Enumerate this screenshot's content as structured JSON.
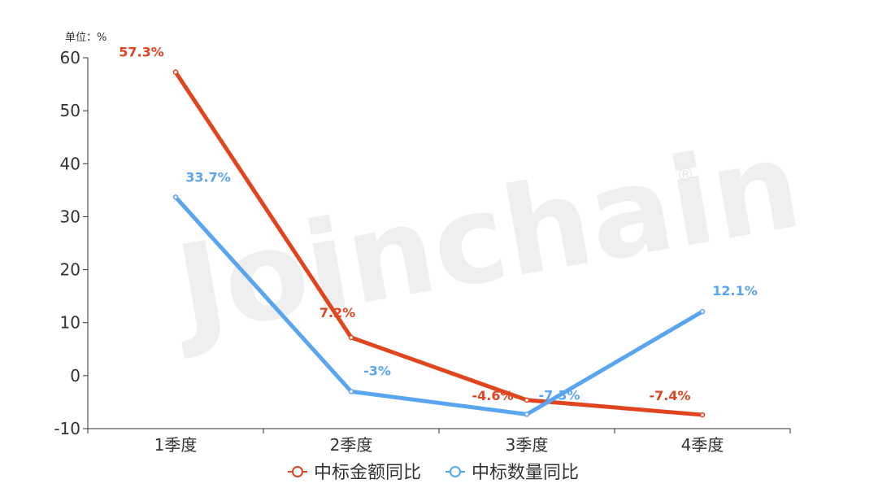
{
  "chart_data": {
    "type": "line",
    "unit_label": "单位：%",
    "categories": [
      "1季度",
      "2季度",
      "3季度",
      "4季度"
    ],
    "ylim": [
      -10,
      60
    ],
    "yticks": [
      60,
      50,
      40,
      30,
      20,
      10,
      0,
      -10
    ],
    "grid": false,
    "legend_position": "bottom-center",
    "series": [
      {
        "name": "中标金额同比",
        "color": "#e04520",
        "values": [
          57.3,
          7.2,
          -4.6,
          -7.4
        ],
        "labels": [
          "57.3%",
          "7.2%",
          "-4.6%",
          "-7.4%"
        ]
      },
      {
        "name": "中标数量同比",
        "color": "#5aa5f0",
        "values": [
          33.7,
          -3,
          -7.3,
          12.1
        ],
        "labels": [
          "33.7%",
          "-3%",
          "-7.3%",
          "12.1%"
        ]
      }
    ]
  },
  "watermark": {
    "text": "Joinchain",
    "mark": "®"
  }
}
